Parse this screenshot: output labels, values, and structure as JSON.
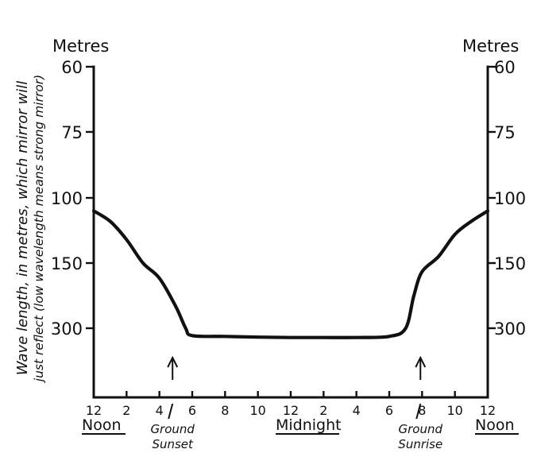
{
  "chart_data": {
    "type": "line",
    "ylabel_line1": "Wave length, in metres, which mirror will",
    "ylabel_line2": "just reflect (low wavelength means strong mirror)",
    "left_unit": "Metres",
    "right_unit": "Metres",
    "y_ticks": [
      "60",
      "75",
      "100",
      "150",
      "300"
    ],
    "x_ticks": [
      "12",
      "2",
      "4",
      "6",
      "8",
      "10",
      "12",
      "2",
      "4",
      "6",
      "8",
      "10",
      "12"
    ],
    "x_hours": [
      0,
      2,
      4,
      6,
      8,
      10,
      12,
      14,
      16,
      18,
      20,
      22,
      24
    ],
    "period_labels": {
      "noon_start": "Noon",
      "midnight": "Midnight",
      "noon_end": "Noon"
    },
    "annotations": {
      "sunset": {
        "line1": "Ground",
        "line2": "Sunset",
        "hour": 4.8
      },
      "sunrise": {
        "line1": "Ground",
        "line2": "Sunrise",
        "hour": 19.9
      }
    },
    "series": [
      {
        "x": [
          0,
          1,
          2,
          3,
          4,
          5,
          5.6,
          6,
          8,
          10,
          12,
          14,
          16,
          18,
          19,
          19.5,
          20,
          21,
          22,
          23,
          24
        ],
        "y": [
          110,
          118,
          132,
          150,
          185,
          250,
          300,
          320,
          322,
          324,
          325,
          325,
          325,
          322,
          300,
          225,
          170,
          145,
          128,
          118,
          110
        ]
      }
    ]
  }
}
